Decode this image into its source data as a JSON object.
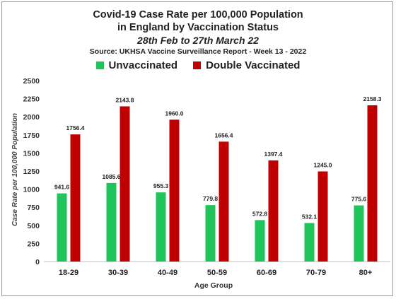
{
  "titles": {
    "line1": "Covid-19 Case Rate per 100,000 Population",
    "line2": "in England by Vaccination Status",
    "line3": "28th Feb to 27th March 22",
    "line4": "Source: UKHSA Vaccine Surveillance Report - Week 13 - 2022"
  },
  "chart_data": {
    "type": "bar",
    "categories": [
      "18-29",
      "30-39",
      "40-49",
      "50-59",
      "60-69",
      "70-79",
      "80+"
    ],
    "series": [
      {
        "name": "Unvaccinated",
        "color": "#1fc45a",
        "values": [
          941.6,
          1085.6,
          955.3,
          779.8,
          572.8,
          532.1,
          775.6
        ]
      },
      {
        "name": "Double Vaccinated",
        "color": "#c00000",
        "values": [
          1756.4,
          2143.8,
          1960.0,
          1656.4,
          1397.4,
          1245.0,
          2158.3
        ]
      }
    ],
    "data_labels": [
      [
        "941.6",
        "1085.6",
        "955.3",
        "779.8",
        "572.8",
        "532.1",
        "775.6"
      ],
      [
        "1756.4",
        "2143.8",
        "1960.0",
        "1656.4",
        "1397.4",
        "1245.0",
        "2158.3"
      ]
    ],
    "xlabel": "Age Group",
    "ylabel": "Case Rate per 100,000 Population",
    "ylim": [
      0,
      2500
    ],
    "yticks": [
      0,
      250,
      500,
      750,
      1000,
      1250,
      1500,
      1750,
      2000,
      2250,
      2500
    ],
    "ytick_labels": [
      "0",
      "250",
      "500",
      "750",
      "1000",
      "1250",
      "1500",
      "1750",
      "2000",
      "2250",
      "2500"
    ],
    "grid": false,
    "legend_position": "top-center"
  }
}
